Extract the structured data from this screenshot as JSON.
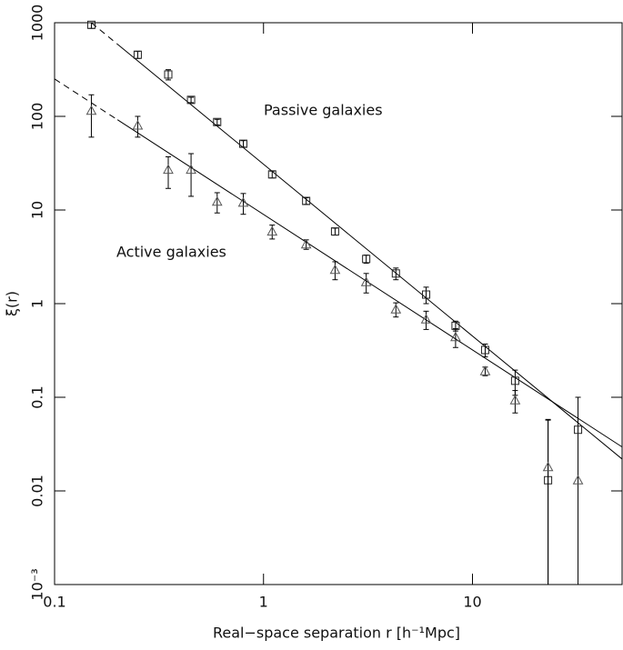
{
  "chart_data": {
    "type": "scatter",
    "x_label": "Real−space separation r [h⁻¹Mpc]",
    "y_label": "ξ(r)",
    "xscale": "log",
    "yscale": "log",
    "xlim": [
      0.1,
      52
    ],
    "ylim": [
      0.001,
      1000
    ],
    "xticks": [
      0.1,
      1,
      10
    ],
    "yticks": [
      {
        "value": 0.001,
        "label": "10⁻³"
      },
      0.01,
      0.1,
      1,
      10,
      100,
      1000
    ],
    "color": "#000000",
    "series": [
      {
        "name": "Passive galaxies",
        "marker": "square",
        "color": "#222222",
        "x": [
          0.15,
          0.25,
          0.35,
          0.45,
          0.6,
          0.8,
          1.1,
          1.6,
          2.2,
          3.1,
          4.3,
          6.0,
          8.3,
          11.5,
          16,
          23,
          32
        ],
        "values": [
          950,
          455,
          280,
          150,
          87,
          51,
          24,
          12.5,
          5.9,
          3.0,
          2.1,
          1.25,
          0.58,
          0.32,
          0.15,
          0.013,
          0.045
        ],
        "errors": [
          80,
          40,
          35,
          10,
          6,
          4,
          2,
          1,
          0.5,
          0.3,
          0.3,
          0.25,
          0.07,
          0.05,
          0.045,
          0.044,
          0.055
        ]
      },
      {
        "name": "Active galaxies",
        "marker": "triangle",
        "color": "#555555",
        "x": [
          0.15,
          0.25,
          0.35,
          0.45,
          0.6,
          0.8,
          1.1,
          1.6,
          2.2,
          3.1,
          4.3,
          6.0,
          8.3,
          11.5,
          16,
          23,
          32
        ],
        "values": [
          115,
          80,
          27,
          27,
          12.3,
          12,
          5.9,
          4.3,
          2.3,
          1.7,
          0.87,
          0.68,
          0.44,
          0.19,
          0.093,
          0.018,
          0.013
        ],
        "errors": [
          55,
          20,
          10,
          13,
          3,
          3,
          1,
          0.5,
          0.5,
          0.4,
          0.15,
          0.15,
          0.1,
          0.02,
          0.025,
          0.04,
          0
        ]
      }
    ],
    "fits": [
      {
        "x": [
          0.15,
          0.2,
          52
        ],
        "values": [
          1000,
          590,
          0.0219
        ]
      },
      {
        "x": [
          0.1,
          0.2,
          52
        ],
        "values": [
          251,
          92,
          0.0295
        ]
      }
    ]
  }
}
